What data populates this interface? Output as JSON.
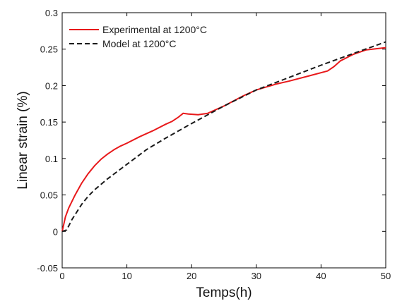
{
  "chart_data": {
    "type": "line",
    "title": "",
    "xlabel": "Temps(h)",
    "ylabel": "Linear strain (%)",
    "xlim": [
      0,
      50
    ],
    "ylim": [
      -0.05,
      0.3
    ],
    "x_ticks": [
      0,
      10,
      20,
      30,
      40,
      50
    ],
    "x_tick_labels": [
      "0",
      "10",
      "20",
      "30",
      "40",
      "50"
    ],
    "y_ticks": [
      -0.05,
      0,
      0.05,
      0.1,
      0.15,
      0.2,
      0.25,
      0.3
    ],
    "y_tick_labels": [
      "-0.05",
      "0",
      "0.05",
      "0.1",
      "0.15",
      "0.2",
      "0.25",
      "0.3"
    ],
    "grid": false,
    "legend_position": "top-left",
    "series": [
      {
        "name": "Experimental at 1200°C",
        "color": "#e8191b",
        "dash": "solid",
        "x": [
          0,
          0.5,
          1,
          2,
          3,
          4,
          5,
          6,
          7,
          8,
          9,
          10,
          12,
          14,
          16,
          17,
          18,
          18.7,
          19.5,
          21,
          22.5,
          25,
          28,
          30,
          33,
          35,
          38,
          41,
          42,
          43,
          45,
          47,
          50
        ],
        "y": [
          0,
          0.02,
          0.032,
          0.05,
          0.066,
          0.079,
          0.09,
          0.099,
          0.106,
          0.112,
          0.117,
          0.121,
          0.13,
          0.138,
          0.147,
          0.151,
          0.157,
          0.162,
          0.161,
          0.16,
          0.162,
          0.172,
          0.186,
          0.194,
          0.202,
          0.206,
          0.213,
          0.22,
          0.226,
          0.234,
          0.243,
          0.249,
          0.252
        ]
      },
      {
        "name": "Model at 1200°C",
        "color": "#1a1a1a",
        "dash": "dashed",
        "x": [
          0,
          0.7,
          1.5,
          3,
          4,
          5,
          7,
          10,
          13,
          16,
          20,
          25,
          30,
          35,
          40,
          45,
          50
        ],
        "y": [
          0,
          0.002,
          0.016,
          0.037,
          0.048,
          0.057,
          0.072,
          0.092,
          0.112,
          0.128,
          0.148,
          0.172,
          0.194,
          0.211,
          0.228,
          0.244,
          0.26
        ]
      }
    ]
  }
}
